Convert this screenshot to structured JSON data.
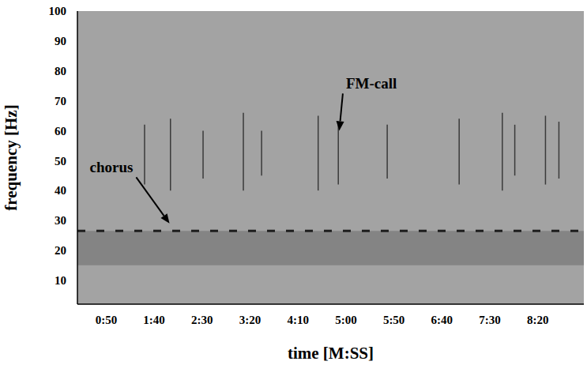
{
  "chart_data": {
    "type": "spectrogram",
    "x_label": "time [M:SS]",
    "y_label": "frequency [Hz]",
    "xlim": [
      20,
      548
    ],
    "ylim": [
      2,
      100
    ],
    "xticks": [
      {
        "value": 50,
        "label": "0:50"
      },
      {
        "value": 100,
        "label": "1:40"
      },
      {
        "value": 150,
        "label": "2:30"
      },
      {
        "value": 200,
        "label": "3:20"
      },
      {
        "value": 250,
        "label": "4:10"
      },
      {
        "value": 300,
        "label": "5:00"
      },
      {
        "value": 350,
        "label": "5:50"
      },
      {
        "value": 400,
        "label": "6:40"
      },
      {
        "value": 450,
        "label": "7:30"
      },
      {
        "value": 500,
        "label": "8:20"
      }
    ],
    "yticks": [
      10,
      20,
      30,
      40,
      50,
      60,
      70,
      80,
      90,
      100
    ],
    "chorus": {
      "frequency": 26.5,
      "band": [
        15,
        26.5
      ]
    },
    "fm_calls": {
      "time": [
        90,
        117,
        151,
        193,
        212,
        271,
        292,
        343,
        418,
        463,
        476,
        508,
        522
      ],
      "f_low": [
        42,
        40,
        44,
        40,
        45,
        40,
        42,
        44,
        42,
        40,
        45,
        42,
        44
      ],
      "f_high": [
        62,
        64,
        60,
        66,
        60,
        65,
        63,
        62,
        64,
        66,
        62,
        65,
        63
      ]
    },
    "annotations": [
      {
        "text": "chorus",
        "x": 78,
        "y": 46,
        "arrow_x": 116,
        "arrow_y": 29
      },
      {
        "text": "FM-call",
        "x": 300,
        "y": 74,
        "arrow_x": 293,
        "arrow_y": 60
      }
    ]
  }
}
